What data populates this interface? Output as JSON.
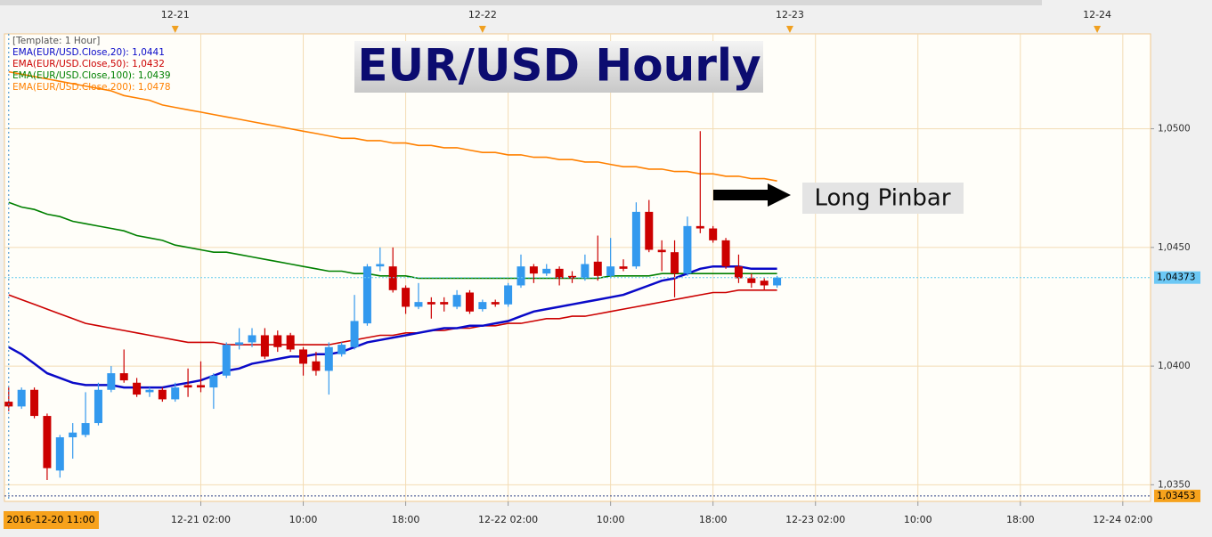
{
  "chart_data": {
    "type": "candlestick",
    "title": "EUR/USD Hourly",
    "template_label": "[Template: 1 Hour]",
    "annotation": "Long Pinbar",
    "crosshair_time": "2016-12-20 11:00",
    "last_price": {
      "value": 1.04373,
      "label": "1,04373"
    },
    "crosshair_price": {
      "value": 1.03453,
      "label": "1,03453"
    },
    "up_color": "#3399ee",
    "down_color": "#cc0000",
    "grid": true,
    "x": [
      "2016-12-20 11:00",
      "2016-12-20 12:00",
      "2016-12-20 13:00",
      "2016-12-20 14:00",
      "2016-12-20 15:00",
      "2016-12-20 16:00",
      "2016-12-20 17:00",
      "2016-12-20 18:00",
      "2016-12-20 19:00",
      "2016-12-20 20:00",
      "2016-12-20 21:00",
      "2016-12-20 22:00",
      "2016-12-20 23:00",
      "2016-12-21 00:00",
      "2016-12-21 01:00",
      "2016-12-21 02:00",
      "2016-12-21 03:00",
      "2016-12-21 04:00",
      "2016-12-21 05:00",
      "2016-12-21 06:00",
      "2016-12-21 07:00",
      "2016-12-21 08:00",
      "2016-12-21 09:00",
      "2016-12-21 10:00",
      "2016-12-21 11:00",
      "2016-12-21 12:00",
      "2016-12-21 13:00",
      "2016-12-21 14:00",
      "2016-12-21 15:00",
      "2016-12-21 16:00",
      "2016-12-21 17:00",
      "2016-12-21 18:00",
      "2016-12-21 19:00",
      "2016-12-21 20:00",
      "2016-12-21 21:00",
      "2016-12-21 22:00",
      "2016-12-21 23:00",
      "2016-12-22 00:00",
      "2016-12-22 01:00",
      "2016-12-22 02:00",
      "2016-12-22 03:00",
      "2016-12-22 04:00",
      "2016-12-22 05:00",
      "2016-12-22 06:00",
      "2016-12-22 07:00",
      "2016-12-22 08:00",
      "2016-12-22 09:00",
      "2016-12-22 10:00",
      "2016-12-22 11:00",
      "2016-12-22 12:00",
      "2016-12-22 13:00",
      "2016-12-22 14:00",
      "2016-12-22 15:00",
      "2016-12-22 16:00",
      "2016-12-22 17:00",
      "2016-12-22 18:00",
      "2016-12-22 19:00",
      "2016-12-22 20:00",
      "2016-12-22 21:00",
      "2016-12-22 22:00",
      "2016-12-22 23:00"
    ],
    "open": [
      1.0385,
      1.0383,
      1.039,
      1.0379,
      1.0356,
      1.037,
      1.0371,
      1.0376,
      1.039,
      1.0397,
      1.0393,
      1.0389,
      1.039,
      1.0386,
      1.0392,
      1.0392,
      1.0391,
      1.0396,
      1.0409,
      1.041,
      1.0413,
      1.0413,
      1.0413,
      1.0407,
      1.0402,
      1.0398,
      1.0405,
      1.0408,
      1.0418,
      1.0442,
      1.0442,
      1.0433,
      1.0425,
      1.0427,
      1.0427,
      1.0425,
      1.0431,
      1.0424,
      1.0427,
      1.0426,
      1.0434,
      1.0442,
      1.0439,
      1.0441,
      1.0438,
      1.0437,
      1.0444,
      1.0438,
      1.0442,
      1.0442,
      1.0465,
      1.0449,
      1.0448,
      1.0439,
      1.0459,
      1.0458,
      1.0453,
      1.0442,
      1.0437,
      1.0436,
      1.0434
    ],
    "high": [
      1.0391,
      1.0391,
      1.0391,
      1.038,
      1.0371,
      1.0376,
      1.0389,
      1.0393,
      1.04,
      1.0407,
      1.0395,
      1.0391,
      1.0391,
      1.0393,
      1.0399,
      1.0402,
      1.0397,
      1.041,
      1.0416,
      1.0416,
      1.0416,
      1.0415,
      1.0414,
      1.0408,
      1.0406,
      1.041,
      1.041,
      1.043,
      1.0443,
      1.045,
      1.045,
      1.0434,
      1.0435,
      1.0429,
      1.0429,
      1.0432,
      1.0432,
      1.0428,
      1.0428,
      1.0435,
      1.0447,
      1.0443,
      1.0443,
      1.0442,
      1.044,
      1.0447,
      1.0455,
      1.0454,
      1.0445,
      1.0469,
      1.047,
      1.0453,
      1.0453,
      1.0463,
      1.0499,
      1.0459,
      1.0454,
      1.0447,
      1.0439,
      1.0437,
      1.0438
    ],
    "low": [
      1.0381,
      1.0382,
      1.0378,
      1.0352,
      1.0353,
      1.0361,
      1.037,
      1.0375,
      1.0389,
      1.0393,
      1.0387,
      1.0387,
      1.0385,
      1.0385,
      1.0387,
      1.0389,
      1.0382,
      1.0395,
      1.0407,
      1.0408,
      1.0403,
      1.0406,
      1.0406,
      1.0396,
      1.0396,
      1.0388,
      1.0404,
      1.0407,
      1.0417,
      1.044,
      1.0431,
      1.0422,
      1.0424,
      1.042,
      1.0423,
      1.0424,
      1.0422,
      1.0423,
      1.0425,
      1.0425,
      1.0433,
      1.0435,
      1.0438,
      1.0434,
      1.0435,
      1.0436,
      1.0436,
      1.0437,
      1.044,
      1.0441,
      1.0448,
      1.044,
      1.0429,
      1.0438,
      1.0456,
      1.0452,
      1.0441,
      1.0435,
      1.0433,
      1.0432,
      1.0433
    ],
    "close": [
      1.0383,
      1.039,
      1.0379,
      1.0357,
      1.037,
      1.0372,
      1.0376,
      1.039,
      1.0397,
      1.0394,
      1.0388,
      1.039,
      1.0386,
      1.0391,
      1.0391,
      1.0391,
      1.0396,
      1.0409,
      1.041,
      1.0413,
      1.0404,
      1.0408,
      1.0407,
      1.0401,
      1.0398,
      1.0408,
      1.0409,
      1.0419,
      1.0442,
      1.0443,
      1.0432,
      1.0425,
      1.0427,
      1.0426,
      1.0426,
      1.043,
      1.0423,
      1.0427,
      1.0426,
      1.0434,
      1.0442,
      1.0439,
      1.0441,
      1.0437,
      1.0437,
      1.0443,
      1.0438,
      1.0442,
      1.0441,
      1.0465,
      1.0449,
      1.0448,
      1.0439,
      1.0459,
      1.0458,
      1.0453,
      1.0442,
      1.0437,
      1.0435,
      1.0434,
      1.04373
    ],
    "series": [
      {
        "name": "EMA(EUR/USD.Close,20): 1,0441",
        "color": "#0a0ac8",
        "values": [
          1.0408,
          1.0405,
          1.0401,
          1.0397,
          1.0395,
          1.0393,
          1.0392,
          1.0392,
          1.0392,
          1.0391,
          1.0391,
          1.0391,
          1.0391,
          1.0392,
          1.0393,
          1.0394,
          1.0396,
          1.0398,
          1.0399,
          1.0401,
          1.0402,
          1.0403,
          1.0404,
          1.0404,
          1.0405,
          1.0405,
          1.0406,
          1.0408,
          1.041,
          1.0411,
          1.0412,
          1.0413,
          1.0414,
          1.0415,
          1.0416,
          1.0416,
          1.0417,
          1.0417,
          1.0418,
          1.0419,
          1.0421,
          1.0423,
          1.0424,
          1.0425,
          1.0426,
          1.0427,
          1.0428,
          1.0429,
          1.043,
          1.0432,
          1.0434,
          1.0436,
          1.0437,
          1.0439,
          1.0441,
          1.0442,
          1.0442,
          1.0442,
          1.0441,
          1.0441,
          1.0441
        ]
      },
      {
        "name": "EMA(EUR/USD.Close,50): 1,0432",
        "color": "#cc0000",
        "values": [
          1.043,
          1.0428,
          1.0426,
          1.0424,
          1.0422,
          1.042,
          1.0418,
          1.0417,
          1.0416,
          1.0415,
          1.0414,
          1.0413,
          1.0412,
          1.0411,
          1.041,
          1.041,
          1.041,
          1.0409,
          1.0409,
          1.0409,
          1.0409,
          1.0409,
          1.0409,
          1.0409,
          1.0409,
          1.0409,
          1.041,
          1.0411,
          1.0412,
          1.0413,
          1.0413,
          1.0414,
          1.0414,
          1.0415,
          1.0415,
          1.0416,
          1.0416,
          1.0417,
          1.0417,
          1.0418,
          1.0418,
          1.0419,
          1.042,
          1.042,
          1.0421,
          1.0421,
          1.0422,
          1.0423,
          1.0424,
          1.0425,
          1.0426,
          1.0427,
          1.0428,
          1.0429,
          1.043,
          1.0431,
          1.0431,
          1.0432,
          1.0432,
          1.0432,
          1.0432
        ]
      },
      {
        "name": "EMA(EUR/USD.Close,100): 1,0439",
        "color": "#008000",
        "values": [
          1.0469,
          1.0467,
          1.0466,
          1.0464,
          1.0463,
          1.0461,
          1.046,
          1.0459,
          1.0458,
          1.0457,
          1.0455,
          1.0454,
          1.0453,
          1.0451,
          1.045,
          1.0449,
          1.0448,
          1.0448,
          1.0447,
          1.0446,
          1.0445,
          1.0444,
          1.0443,
          1.0442,
          1.0441,
          1.044,
          1.044,
          1.0439,
          1.0439,
          1.0438,
          1.0438,
          1.0438,
          1.0437,
          1.0437,
          1.0437,
          1.0437,
          1.0437,
          1.0437,
          1.0437,
          1.0437,
          1.0437,
          1.0437,
          1.0437,
          1.0437,
          1.0437,
          1.0437,
          1.0437,
          1.0438,
          1.0438,
          1.0438,
          1.0438,
          1.0439,
          1.0439,
          1.0439,
          1.0439,
          1.0439,
          1.0439,
          1.0439,
          1.0439,
          1.0439,
          1.0439
        ]
      },
      {
        "name": "EMA(EUR/USD.Close,200): 1,0478",
        "color": "#ff8000",
        "values": [
          1.0524,
          1.0523,
          1.0522,
          1.0521,
          1.052,
          1.0519,
          1.0518,
          1.0517,
          1.0516,
          1.0514,
          1.0513,
          1.0512,
          1.051,
          1.0509,
          1.0508,
          1.0507,
          1.0506,
          1.0505,
          1.0504,
          1.0503,
          1.0502,
          1.0501,
          1.05,
          1.0499,
          1.0498,
          1.0497,
          1.0496,
          1.0496,
          1.0495,
          1.0495,
          1.0494,
          1.0494,
          1.0493,
          1.0493,
          1.0492,
          1.0492,
          1.0491,
          1.049,
          1.049,
          1.0489,
          1.0489,
          1.0488,
          1.0488,
          1.0487,
          1.0487,
          1.0486,
          1.0486,
          1.0485,
          1.0484,
          1.0484,
          1.0483,
          1.0483,
          1.0482,
          1.0482,
          1.0481,
          1.0481,
          1.048,
          1.048,
          1.0479,
          1.0479,
          1.0478
        ]
      }
    ],
    "ylim": [
      1.0343,
      1.054
    ],
    "yticks": [
      {
        "value": 1.035,
        "label": "1,0350"
      },
      {
        "value": 1.04,
        "label": "1,0400"
      },
      {
        "value": 1.045,
        "label": "1,0450"
      },
      {
        "value": 1.05,
        "label": "1,0500"
      }
    ],
    "xlim": [
      "2016-12-20 10:40",
      "2016-12-24 04:10"
    ],
    "xticks": [
      {
        "value": "2016-12-21 02:00",
        "label": "12-21 02:00"
      },
      {
        "value": "2016-12-21 10:00",
        "label": "10:00"
      },
      {
        "value": "2016-12-21 18:00",
        "label": "18:00"
      },
      {
        "value": "2016-12-22 02:00",
        "label": "12-22 02:00"
      },
      {
        "value": "2016-12-22 10:00",
        "label": "10:00"
      },
      {
        "value": "2016-12-22 18:00",
        "label": "18:00"
      },
      {
        "value": "2016-12-23 02:00",
        "label": "12-23 02:00"
      },
      {
        "value": "2016-12-23 10:00",
        "label": "10:00"
      },
      {
        "value": "2016-12-23 18:00",
        "label": "18:00"
      },
      {
        "value": "2016-12-24 02:00",
        "label": "12-24 02:00"
      }
    ],
    "top_ticks": [
      {
        "value": "2016-12-21 00:00",
        "label": "12-21"
      },
      {
        "value": "2016-12-22 00:00",
        "label": "12-22"
      },
      {
        "value": "2016-12-23 00:00",
        "label": "12-23"
      },
      {
        "value": "2016-12-24 00:00",
        "label": "12-24"
      }
    ]
  }
}
